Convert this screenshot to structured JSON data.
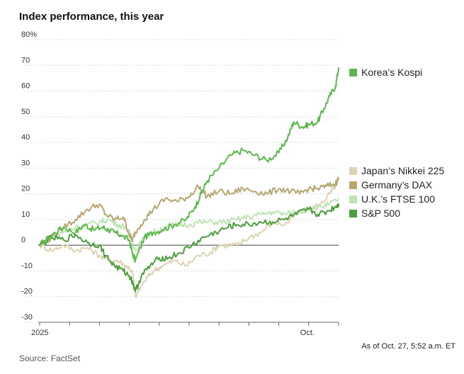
{
  "title": "Index performance, this year",
  "source": "Source: FactSet",
  "as_of": "As of Oct. 27, 5:52 a.m. ET",
  "chart_data": {
    "type": "line",
    "title": "Index performance, this year",
    "xlabel": "",
    "ylabel": "",
    "ylim": [
      -30,
      80
    ],
    "yticks": [
      -30,
      -20,
      -10,
      0,
      10,
      20,
      30,
      40,
      50,
      60,
      70,
      80
    ],
    "ytick_labels": [
      "-30",
      "-20",
      "-10",
      "0",
      "10",
      "20",
      "30",
      "40",
      "50",
      "60",
      "70",
      "80%"
    ],
    "xlim": [
      0,
      10
    ],
    "x_tick_labels": [
      "2025",
      "Oct."
    ],
    "x_tick_positions": [
      0,
      9
    ],
    "x_unit": "months since start of 2025",
    "series": [
      {
        "name": "Korea’s Kospi",
        "color": "#5cb84c",
        "x": [
          0,
          0.4,
          0.8,
          1.2,
          1.5,
          1.8,
          2.1,
          2.3,
          2.5,
          2.7,
          3.0,
          3.1,
          3.2,
          3.5,
          3.8,
          4.1,
          4.5,
          4.9,
          5.2,
          5.4,
          5.6,
          6.0,
          6.4,
          6.8,
          7.2,
          7.6,
          8.0,
          8.3,
          8.5,
          8.8,
          9.0,
          9.3,
          9.5,
          9.7,
          9.9,
          10.0
        ],
        "values": [
          0,
          4,
          7,
          5,
          8,
          6,
          7,
          6,
          5,
          4,
          2,
          -3,
          -6,
          3,
          5,
          6,
          8,
          10,
          15,
          20,
          25,
          30,
          35,
          37,
          35,
          33,
          36,
          42,
          48,
          46,
          47,
          48,
          53,
          58,
          62,
          69
        ]
      },
      {
        "name": "Japan’s Nikkei 225",
        "color": "#ddd3b3",
        "x": [
          0,
          0.4,
          0.8,
          1.2,
          1.6,
          2.0,
          2.3,
          2.6,
          2.9,
          3.1,
          3.2,
          3.5,
          3.8,
          4.1,
          4.5,
          4.9,
          5.3,
          5.7,
          6.0,
          6.3,
          6.6,
          7.0,
          7.4,
          7.8,
          8.2,
          8.6,
          9.0,
          9.4,
          9.7,
          9.9,
          10.0
        ],
        "values": [
          0,
          -2,
          0,
          -2,
          -1,
          -4,
          -6,
          -6,
          -8,
          -10,
          -20,
          -14,
          -10,
          -8,
          -6,
          -8,
          -4,
          -3,
          0,
          0,
          0,
          3,
          5,
          9,
          8,
          12,
          14,
          16,
          20,
          23,
          26
        ]
      },
      {
        "name": "Germany’s DAX",
        "color": "#b5a771",
        "x": [
          0,
          0.4,
          0.8,
          1.2,
          1.6,
          2.0,
          2.2,
          2.5,
          2.8,
          3.0,
          3.1,
          3.2,
          3.5,
          3.8,
          4.2,
          4.6,
          5.0,
          5.3,
          5.6,
          6.0,
          6.4,
          6.8,
          7.2,
          7.6,
          8.0,
          8.4,
          8.7,
          9.0,
          9.3,
          9.6,
          9.9,
          10.0
        ],
        "values": [
          0,
          3,
          7,
          10,
          14,
          16,
          12,
          10,
          11,
          4,
          2,
          5,
          10,
          14,
          18,
          17,
          19,
          23,
          19,
          21,
          20,
          22,
          21,
          20,
          22,
          21,
          20,
          22,
          22,
          23,
          24,
          26
        ]
      },
      {
        "name": "U.K.’s FTSE 100",
        "color": "#bfe3b4",
        "x": [
          0,
          0.4,
          0.8,
          1.2,
          1.6,
          2.0,
          2.3,
          2.6,
          2.9,
          3.1,
          3.2,
          3.5,
          3.8,
          4.2,
          4.6,
          5.0,
          5.4,
          5.8,
          6.2,
          6.6,
          7.0,
          7.4,
          7.8,
          8.2,
          8.6,
          9.0,
          9.4,
          9.7,
          10.0
        ],
        "values": [
          0,
          3,
          5,
          7,
          8,
          9,
          10,
          8,
          7,
          2,
          -2,
          3,
          5,
          7,
          8,
          8,
          9,
          9,
          9,
          10,
          11,
          12,
          13,
          12,
          13,
          14,
          15,
          16,
          18
        ]
      },
      {
        "name": "S&P 500",
        "color": "#4d9e3f",
        "x": [
          0,
          0.4,
          0.8,
          1.2,
          1.6,
          2.0,
          2.2,
          2.5,
          2.8,
          3.0,
          3.1,
          3.2,
          3.4,
          3.7,
          4.0,
          4.3,
          4.7,
          5.1,
          5.5,
          5.9,
          6.3,
          6.6,
          7.0,
          7.4,
          7.8,
          8.2,
          8.6,
          9.0,
          9.3,
          9.6,
          9.9,
          10.0
        ],
        "values": [
          0,
          3,
          2,
          4,
          1,
          0,
          -4,
          -8,
          -10,
          -12,
          -14,
          -18,
          -12,
          -8,
          -5,
          -5,
          -3,
          0,
          3,
          5,
          7,
          8,
          8,
          9,
          9,
          10,
          12,
          14,
          12,
          13,
          15,
          16
        ]
      }
    ],
    "legend": [
      {
        "label": "Korea’s Kospi",
        "color": "#5cb84c"
      },
      {
        "label": "Japan’s Nikkei 225",
        "color": "#ddd3b3"
      },
      {
        "label": "Germany’s DAX",
        "color": "#b5a771"
      },
      {
        "label": "U.K.’s FTSE 100",
        "color": "#bfe3b4"
      },
      {
        "label": "S&P 500",
        "color": "#4d9e3f"
      }
    ],
    "legend_placement": "right",
    "grid": "horizontal-dotted"
  }
}
